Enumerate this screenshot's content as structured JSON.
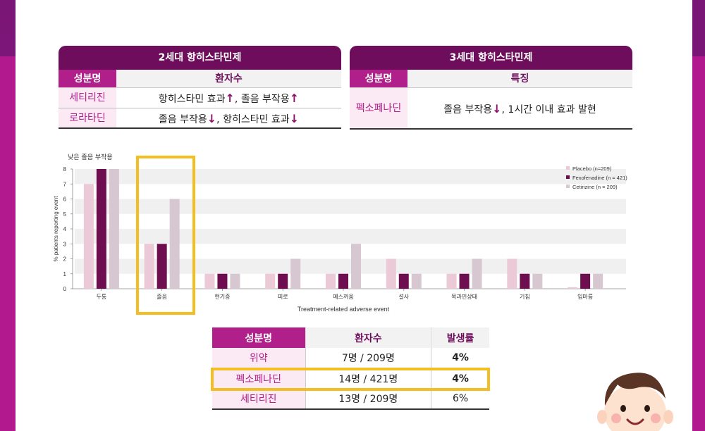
{
  "gen2": {
    "title": "2세대 항히스타민제",
    "head_key": "성분명",
    "head_val": "환자수",
    "rows": [
      {
        "name": "세티리진",
        "desc": "항히스타민 효과↑, 졸음 부작용↑"
      },
      {
        "name": "로라타딘",
        "desc": "졸음 부작용↓, 항히스타민 효과↓"
      }
    ]
  },
  "gen3": {
    "title": "3세대 항히스타민제",
    "head_key": "성분명",
    "head_val": "특징",
    "rows": [
      {
        "name": "펙소페나딘",
        "desc": "졸음 부작용↓, 1시간 이내 효과 발현"
      }
    ]
  },
  "chart_data": {
    "type": "bar",
    "title": "낮은 졸음 부작용",
    "xlabel": "Treatment-related adverse event",
    "ylabel": "% patients reporting event",
    "ylim": [
      0,
      8
    ],
    "yticks": [
      0,
      1,
      2,
      3,
      4,
      5,
      6,
      7,
      8
    ],
    "categories": [
      "두통",
      "졸음",
      "현기증",
      "피로",
      "메스꺼움",
      "설사",
      "목과민상태",
      "기침",
      "입마름"
    ],
    "series": [
      {
        "name": "Placebo (n=209)",
        "color": "#ecc9d6",
        "values": [
          7,
          3,
          1,
          1,
          1,
          2,
          1,
          2,
          0.1
        ]
      },
      {
        "name": "Fexofenadine (n = 421)",
        "color": "#6e0d4f",
        "values": [
          8,
          3,
          1,
          1,
          1,
          1,
          1,
          1,
          1
        ]
      },
      {
        "name": "Cetirizine (n = 209)",
        "color": "#d7c7d1",
        "values": [
          8,
          6,
          1,
          2,
          3,
          1,
          2,
          1,
          1
        ]
      }
    ],
    "legend": "top-right",
    "highlight_category": "졸음"
  },
  "rate_table": {
    "headers": [
      "성분명",
      "환자수",
      "발생률"
    ],
    "rows": [
      [
        "위약",
        "7명 / 209명",
        "4%"
      ],
      [
        "펙소페나딘",
        "14명 / 421명",
        "4%"
      ],
      [
        "세티리진",
        "13명 / 209명",
        "6%"
      ]
    ],
    "highlight_row": "펙소페나딘"
  }
}
